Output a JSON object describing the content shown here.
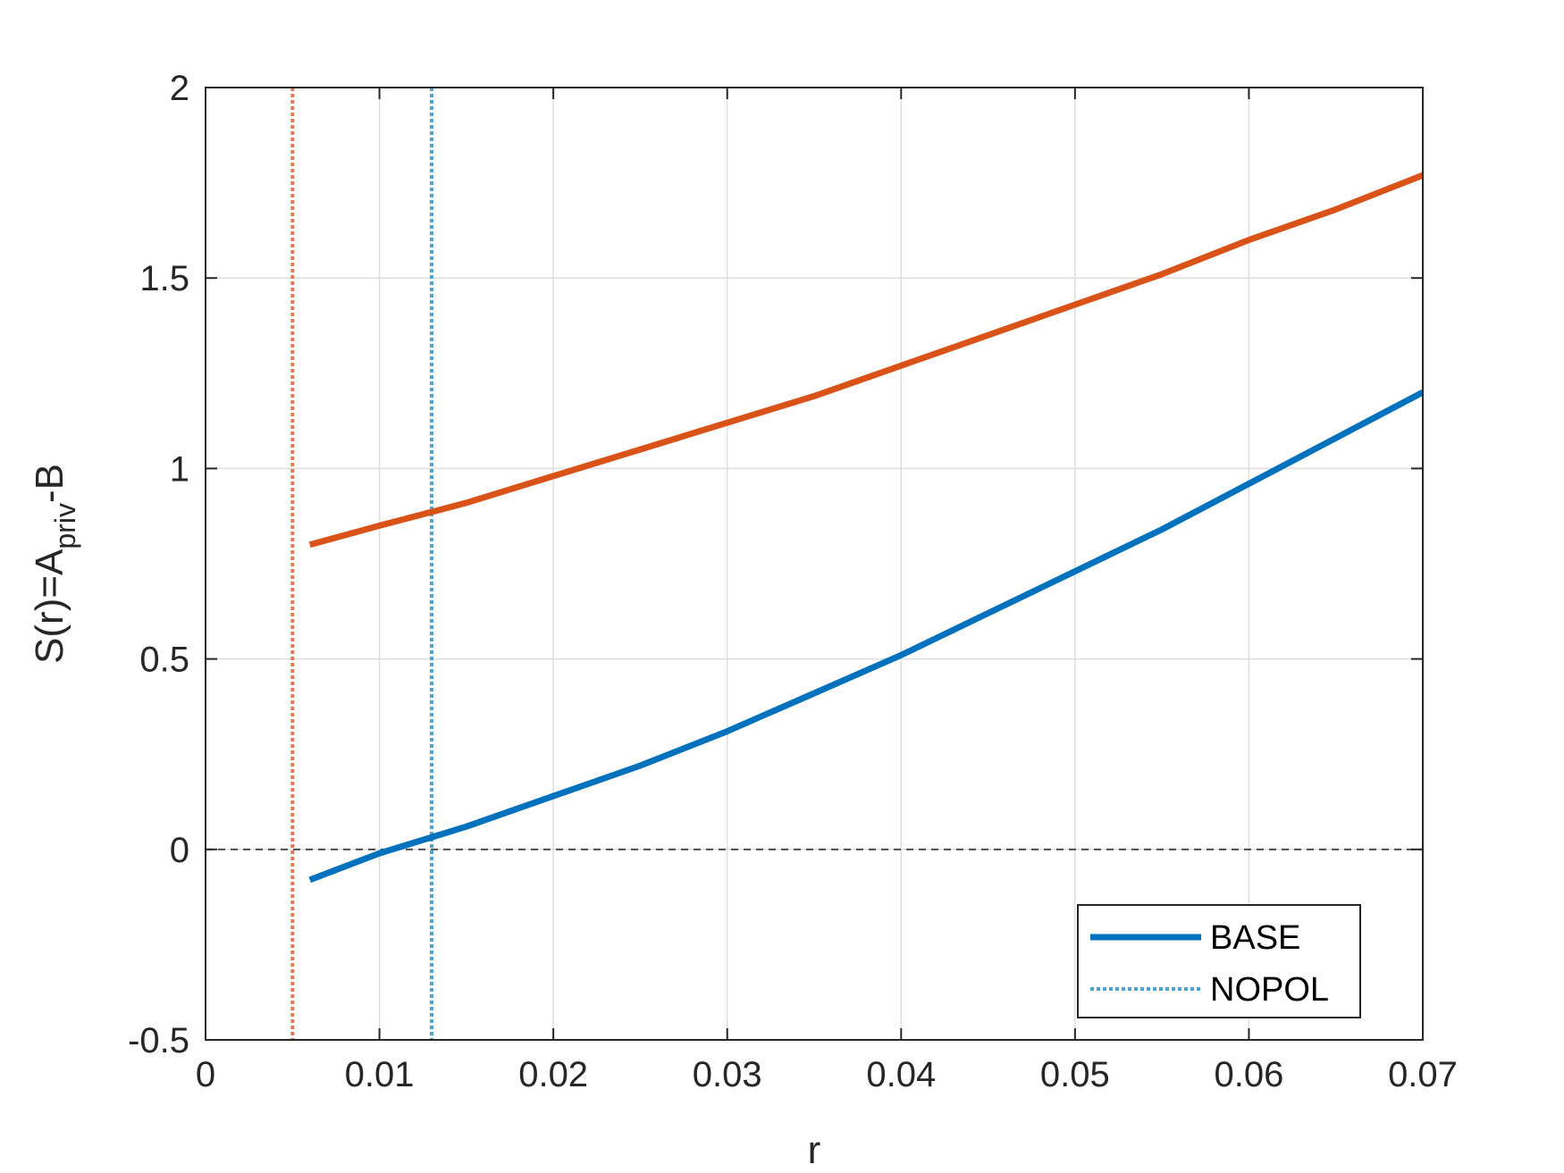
{
  "chart_data": {
    "type": "line",
    "xlabel": "r",
    "ylabel": {
      "main": "S(r)=A",
      "subscript": "priv",
      "suffix": "-B"
    },
    "xlim": [
      0,
      0.07
    ],
    "ylim": [
      -0.5,
      2
    ],
    "x_ticks": [
      0,
      0.01,
      0.02,
      0.03,
      0.04,
      0.05,
      0.06,
      0.07
    ],
    "x_tick_labels": [
      "0",
      "0.01",
      "0.02",
      "0.03",
      "0.04",
      "0.05",
      "0.06",
      "0.07"
    ],
    "y_ticks": [
      -0.5,
      0,
      0.5,
      1,
      1.5,
      2
    ],
    "y_tick_labels": [
      "-0.5",
      "0",
      "0.5",
      "1",
      "1.5",
      "2"
    ],
    "grid": true,
    "legend_position": "bottom-right",
    "zero_line": {
      "y": 0,
      "style": "dashed",
      "color": "#404040"
    },
    "series": [
      {
        "name": "BASE",
        "color": "#0072BD",
        "style": "solid",
        "x": [
          0.006,
          0.01,
          0.015,
          0.02,
          0.025,
          0.03,
          0.035,
          0.04,
          0.045,
          0.05,
          0.055,
          0.06,
          0.065,
          0.07
        ],
        "y": [
          -0.08,
          -0.01,
          0.06,
          0.14,
          0.22,
          0.31,
          0.41,
          0.51,
          0.62,
          0.73,
          0.84,
          0.96,
          1.08,
          1.2
        ]
      },
      {
        "name": "",
        "color": "#D95319",
        "style": "solid",
        "x": [
          0.006,
          0.01,
          0.015,
          0.02,
          0.025,
          0.03,
          0.035,
          0.04,
          0.045,
          0.05,
          0.055,
          0.06,
          0.065,
          0.07
        ],
        "y": [
          0.8,
          0.85,
          0.91,
          0.98,
          1.05,
          1.12,
          1.19,
          1.27,
          1.35,
          1.43,
          1.51,
          1.6,
          1.68,
          1.77
        ]
      }
    ],
    "vlines": [
      {
        "name": "NOPOL",
        "x": 0.013,
        "color": "#4DA3D6",
        "style": "dotted"
      },
      {
        "name": "",
        "x": 0.005,
        "color": "#E37A57",
        "style": "dotted"
      }
    ],
    "legend": [
      {
        "label": "BASE",
        "color": "#0072BD",
        "style": "solid"
      },
      {
        "label": "NOPOL",
        "color": "#4DA3D6",
        "style": "dotted"
      }
    ]
  }
}
